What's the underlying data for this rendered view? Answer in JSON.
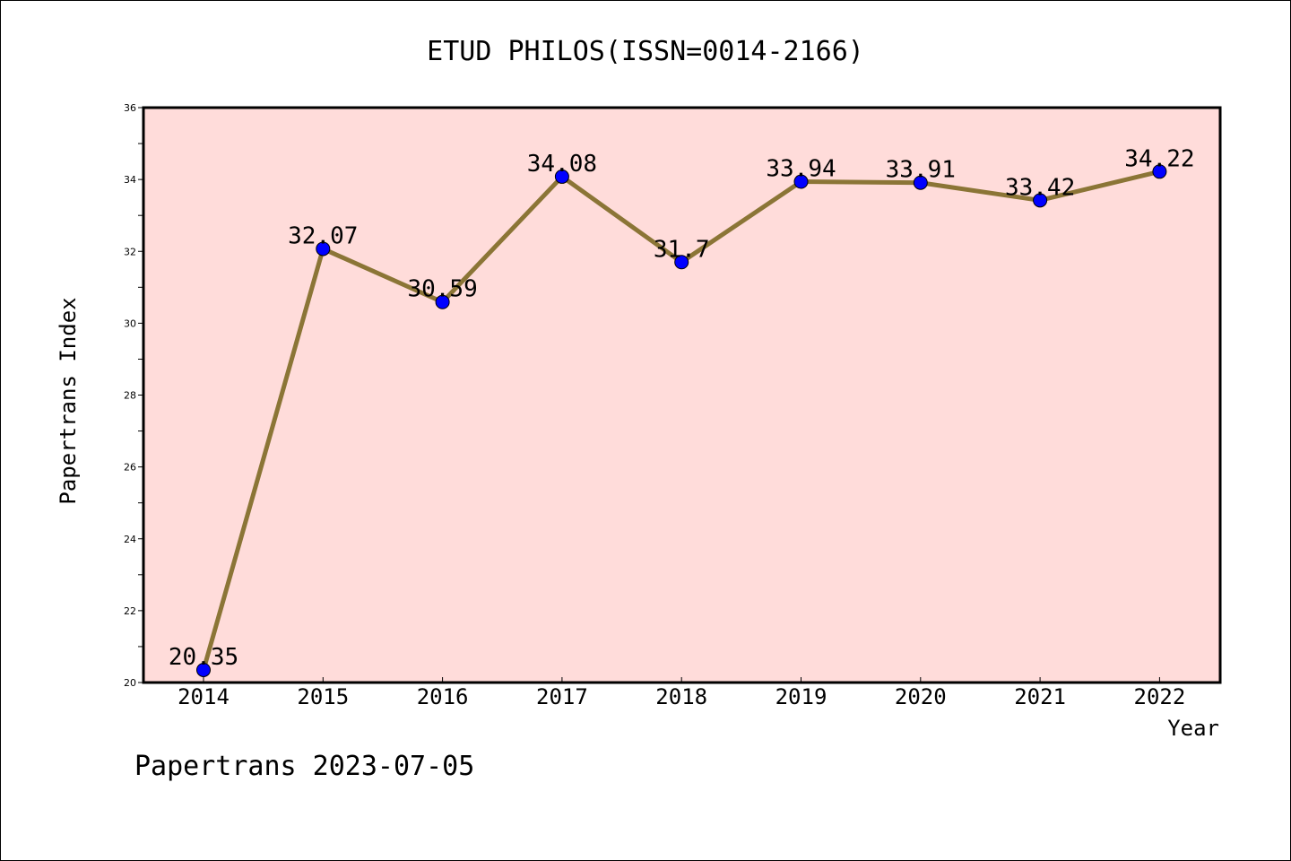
{
  "chart_data": {
    "type": "line",
    "title": "ETUD PHILOS(ISSN=0014-2166)",
    "xlabel": "Year",
    "ylabel": "Papertrans Index",
    "x": [
      "2014",
      "2015",
      "2016",
      "2017",
      "2018",
      "2019",
      "2020",
      "2021",
      "2022"
    ],
    "values": [
      20.35,
      32.07,
      30.59,
      34.08,
      31.7,
      33.94,
      33.91,
      33.42,
      34.22
    ],
    "value_labels": [
      "20.35",
      "32.07",
      "30.59",
      "34.08",
      "31.7",
      "33.94",
      "33.91",
      "33.42",
      "34.22"
    ],
    "ylim": [
      20,
      36
    ],
    "yticks": [
      "20",
      "22",
      "24",
      "26",
      "28",
      "30",
      "32",
      "34",
      "36"
    ],
    "grid": false,
    "legend": "none",
    "line_color": "#8B7536",
    "marker_color": "#0000FF",
    "plot_background": "#FFDCDA"
  },
  "footer": "Papertrans 2023-07-05"
}
